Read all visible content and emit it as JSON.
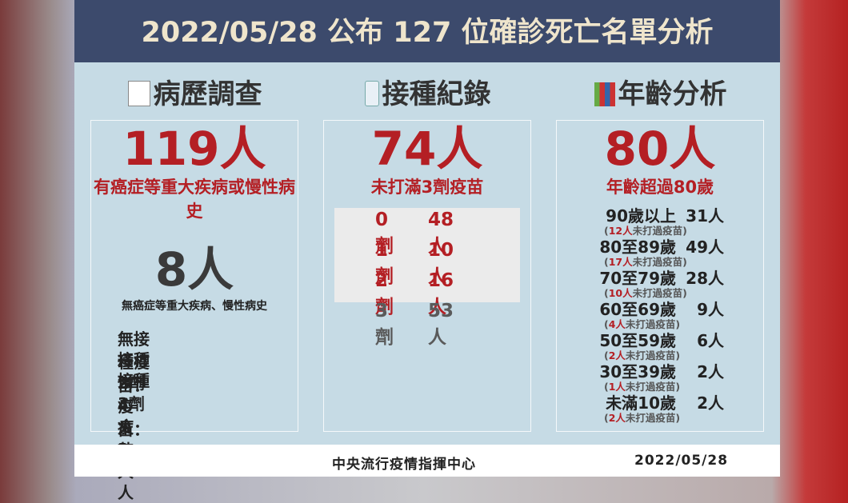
{
  "header": {
    "title": "2022/05/28 公布 127 位確診死亡名單分析"
  },
  "sections": [
    {
      "heading": "病歷調查",
      "big": "119人",
      "sub": "有癌症等重大疾病或慢性病史",
      "big2": "8人",
      "sub2": "無癌症等重大疾病、慢性病史",
      "lines": [
        "無接種疫苗：4 人",
        "接種2劑疫苗：3 人",
        "接種3劑疫苗：1 人"
      ]
    },
    {
      "heading": "接種紀錄",
      "big": "74人",
      "sub": "未打滿3劑疫苗",
      "rows": [
        {
          "dose": "0劑",
          "count": "48人",
          "highlight": true
        },
        {
          "dose": "1劑",
          "count": "10人",
          "highlight": true
        },
        {
          "dose": "2劑",
          "count": "16人",
          "highlight": true
        },
        {
          "dose": "3劑",
          "count": "53人",
          "highlight": false
        }
      ]
    },
    {
      "heading": "年齡分析",
      "big": "80人",
      "sub": "年齡超過80歲",
      "ages": [
        {
          "label": "90歲以上",
          "count": "31人",
          "note": [
            "(",
            "12人",
            "未打過疫苗)"
          ]
        },
        {
          "label": "80至89歲",
          "count": "49人",
          "note": [
            "(",
            "17人",
            "未打過疫苗)"
          ]
        },
        {
          "label": "70至79歲",
          "count": "28人",
          "note": [
            "(",
            "10人",
            "未打過疫苗)"
          ]
        },
        {
          "label": "60至69歲",
          "count": "9人",
          "note": [
            "(",
            "4人",
            "未打過疫苗)"
          ]
        },
        {
          "label": "50至59歲",
          "count": "6人",
          "note": [
            "(",
            "2人",
            "未打過疫苗)"
          ]
        },
        {
          "label": "30至39歲",
          "count": "2人",
          "note": [
            "(",
            "1人",
            "未打過疫苗)"
          ]
        },
        {
          "label": "未滿10歲",
          "count": "2人",
          "note": [
            "(",
            "2人",
            "未打過疫苗)"
          ]
        }
      ]
    }
  ],
  "footer": {
    "source": "中央流行疫情指揮中心",
    "date": "2022/05/28"
  }
}
